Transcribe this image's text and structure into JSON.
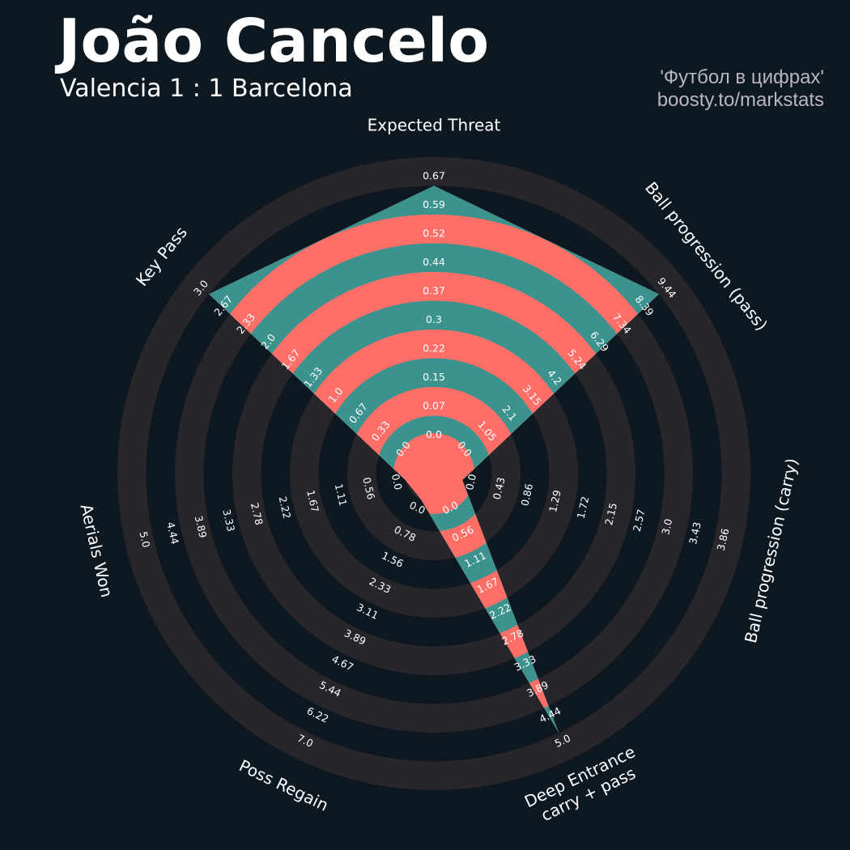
{
  "header": {
    "player": "João Cancelo",
    "match": "Valencia 1 : 1 Barcelona",
    "credit_line1": "'Футбол в цифрах'",
    "credit_line2": "boosty.to/markstats"
  },
  "colors": {
    "background": "#0e1820",
    "ring_dark": "#28252b",
    "ring_red": "#ff6f68",
    "ring_teal": "#3c938d"
  },
  "chart_data": {
    "type": "radar",
    "params": [
      {
        "label": "Expected Threat",
        "min": 0.0,
        "max": 0.67,
        "value": 0.67,
        "ticks": [
          "0.0",
          "0.07",
          "0.15",
          "0.22",
          "0.3",
          "0.37",
          "0.44",
          "0.52",
          "0.59",
          "0.67"
        ]
      },
      {
        "label": "Ball progression (pass)",
        "min": 0.0,
        "max": 9.44,
        "value": 9.44,
        "ticks": [
          "0.0",
          "1.05",
          "2.1",
          "3.15",
          "4.2",
          "5.24",
          "6.29",
          "7.34",
          "8.39",
          "9.44"
        ]
      },
      {
        "label": "Ball progression (carry)",
        "min": 0.0,
        "max": 3.86,
        "value": 0.0,
        "ticks": [
          "0.0",
          "0.43",
          "0.86",
          "1.29",
          "1.72",
          "2.15",
          "2.57",
          "3.0",
          "3.43",
          "3.86"
        ]
      },
      {
        "label": "Deep Entrance\ncarry + pass",
        "min": 0.0,
        "max": 5.0,
        "value": 5.0,
        "ticks": [
          "0.0",
          "0.56",
          "1.11",
          "1.67",
          "2.22",
          "2.78",
          "3.33",
          "3.89",
          "4.44",
          "5.0"
        ]
      },
      {
        "label": "Poss Regain",
        "min": 0.0,
        "max": 7.0,
        "value": 0.0,
        "ticks": [
          "0.0",
          "0.78",
          "1.56",
          "2.33",
          "3.11",
          "3.89",
          "4.67",
          "5.44",
          "6.22",
          "7.0"
        ]
      },
      {
        "label": "Aerials Won",
        "min": 0.0,
        "max": 5.0,
        "value": 0.0,
        "ticks": [
          "0.0",
          "0.56",
          "1.11",
          "1.67",
          "2.22",
          "2.78",
          "3.33",
          "3.89",
          "4.44",
          "5.0"
        ]
      },
      {
        "label": "Key Pass",
        "min": 0.0,
        "max": 3.0,
        "value": 3.0,
        "ticks": [
          "0.0",
          "0.33",
          "0.67",
          "1.0",
          "1.33",
          "1.67",
          "2.0",
          "2.33",
          "2.67",
          "3.0"
        ]
      }
    ]
  }
}
